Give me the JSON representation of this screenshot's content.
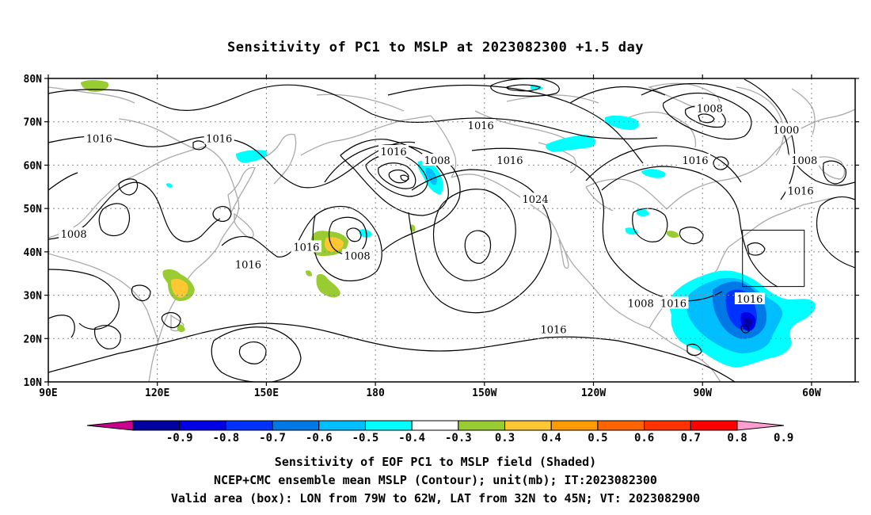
{
  "title": "Sensitivity of PC1 to MSLP at 2023082300 +1.5 day",
  "map": {
    "lat_ticks": [
      "80N",
      "70N",
      "60N",
      "50N",
      "40N",
      "30N",
      "20N",
      "10N"
    ],
    "lon_ticks": [
      "90E",
      "120E",
      "150E",
      "180",
      "150W",
      "120W",
      "90W",
      "60W"
    ],
    "valid_box": {
      "lon_from": "79W",
      "lon_to": "62W",
      "lat_from": "32N",
      "lat_to": "45N"
    },
    "contour_labels": [
      {
        "text": "1016",
        "lon": 104,
        "lat": 66
      },
      {
        "text": "1016",
        "lon": 137,
        "lat": 66
      },
      {
        "text": "1008",
        "lon": 97,
        "lat": 44
      },
      {
        "text": "1016",
        "lon": 145,
        "lat": 37
      },
      {
        "text": "1016",
        "lon": 161,
        "lat": 41
      },
      {
        "text": "1008",
        "lon": 175,
        "lat": 39
      },
      {
        "text": "1016",
        "lon": 185,
        "lat": 63
      },
      {
        "text": "1008",
        "lon": 197,
        "lat": 61
      },
      {
        "text": "1016",
        "lon": 209,
        "lat": 69
      },
      {
        "text": "1016",
        "lon": 217,
        "lat": 61
      },
      {
        "text": "1024",
        "lon": 224,
        "lat": 52
      },
      {
        "text": "1016",
        "lon": 229,
        "lat": 22
      },
      {
        "text": "1008",
        "lon": 272,
        "lat": 73
      },
      {
        "text": "1016",
        "lon": 268,
        "lat": 61
      },
      {
        "text": "1008",
        "lon": 253,
        "lat": 28
      },
      {
        "text": "1016",
        "lon": 262,
        "lat": 28
      },
      {
        "text": "1016",
        "lon": 283,
        "lat": 29
      },
      {
        "text": "1000",
        "lon": 293,
        "lat": 68
      },
      {
        "text": "1008",
        "lon": 298,
        "lat": 61
      },
      {
        "text": "1016",
        "lon": 297,
        "lat": 54
      }
    ]
  },
  "colorbar": {
    "labels": [
      "-0.9",
      "-0.8",
      "-0.7",
      "-0.6",
      "-0.5",
      "-0.4",
      "-0.3",
      "0.3",
      "0.4",
      "0.5",
      "0.6",
      "0.7",
      "0.8",
      "0.9"
    ],
    "colors": [
      "#0000a0",
      "#0000e6",
      "#0032ff",
      "#0078e6",
      "#00beff",
      "#00ffff",
      "#ffffff",
      "#99cc33",
      "#ffc832",
      "#ff9a00",
      "#ff6400",
      "#ff3200",
      "#ff0000"
    ],
    "low_end_color": "#c8008c",
    "high_end_color": "#ff9ecf"
  },
  "captions": [
    "Sensitivity of EOF PC1 to MSLP field (Shaded)",
    "NCEP+CMC ensemble mean MSLP (Contour); unit(mb); IT:2023082300",
    "Valid area (box): LON from 79W to 62W, LAT from 32N to 45N; VT: 2023082900"
  ]
}
